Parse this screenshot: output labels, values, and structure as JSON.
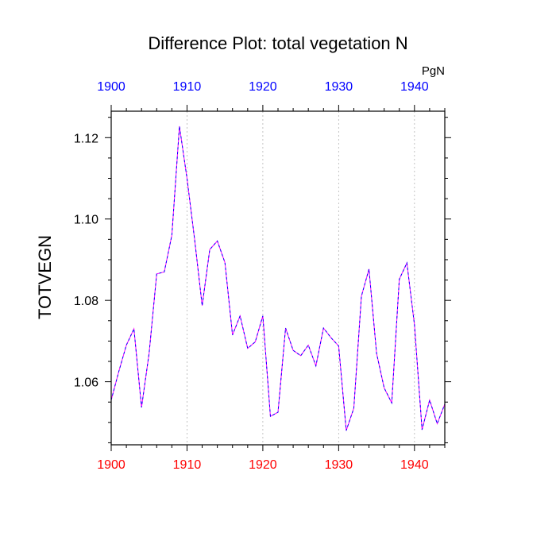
{
  "chart_data": {
    "type": "line",
    "title": "Difference Plot: total vegetation N",
    "units": "PgN",
    "xlabel": "",
    "ylabel": "TOTVEGN",
    "xlim": [
      1900,
      1944
    ],
    "ylim": [
      1.0445,
      1.1265
    ],
    "grid_x": [
      1910,
      1920,
      1930,
      1940
    ],
    "x_ticks": [
      1900,
      1910,
      1920,
      1930,
      1940
    ],
    "y_ticks": [
      1.06,
      1.08,
      1.1,
      1.12
    ],
    "y_tick_labels": [
      "1.06",
      "1.08",
      "1.10",
      "1.12"
    ],
    "top_axis_color": "#0000ff",
    "bottom_axis_color": "#ff0000",
    "line_colors": [
      "#ff00ff",
      "#0000ff"
    ],
    "series": [
      {
        "x": [
          1900,
          1901,
          1902,
          1903,
          1904,
          1905,
          1906,
          1907,
          1908,
          1909,
          1910,
          1911,
          1912,
          1913,
          1914,
          1915,
          1916,
          1917,
          1918,
          1919,
          1920,
          1921,
          1922,
          1923,
          1924,
          1925,
          1926,
          1927,
          1928,
          1929,
          1930,
          1931,
          1932,
          1933,
          1934,
          1935,
          1936,
          1937,
          1938,
          1939,
          1940,
          1941,
          1942,
          1943,
          1944
        ],
        "values": [
          1.0555,
          1.0625,
          1.069,
          1.073,
          1.0537,
          1.067,
          1.0865,
          1.087,
          1.096,
          1.1228,
          1.11,
          1.095,
          1.0787,
          1.0925,
          1.0946,
          1.0893,
          1.0715,
          1.0762,
          1.0682,
          1.0698,
          1.0762,
          1.0515,
          1.0525,
          1.0732,
          1.0677,
          1.0664,
          1.069,
          1.0639,
          1.0732,
          1.0708,
          1.0688,
          1.048,
          1.0535,
          1.081,
          1.0877,
          1.067,
          1.0585,
          1.0548,
          1.0852,
          1.0892,
          1.074,
          1.0482,
          1.0555,
          1.0497,
          1.0545
        ]
      }
    ]
  }
}
